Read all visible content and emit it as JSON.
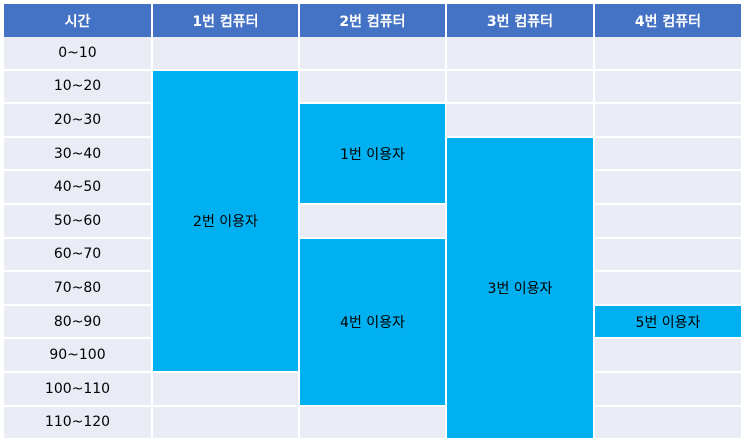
{
  "header": [
    "시간",
    "1번 컴퓨터",
    "2번 컴퓨터",
    "3번 컴퓨터",
    "4번 컴퓨터"
  ],
  "time_slots": [
    "0~10",
    "10~20",
    "20~30",
    "30~40",
    "40~50",
    "50~60",
    "60~70",
    "70~80",
    "80~90",
    "90~100",
    "100~110",
    "110~120"
  ],
  "usage": [
    {
      "computer": 1,
      "start": 10,
      "end": 100,
      "label": "2번 이용자"
    },
    {
      "computer": 2,
      "start": 20,
      "end": 50,
      "label": "1번 이용자"
    },
    {
      "computer": 2,
      "start": 60,
      "end": 110,
      "label": "4번 이용자"
    },
    {
      "computer": 3,
      "start": 30,
      "end": 120,
      "label": "3번 이용자"
    },
    {
      "computer": 4,
      "start": 80,
      "end": 90,
      "label": "5번 이용자"
    }
  ],
  "colors": {
    "header": "#4472c4",
    "cell": "#e9ecf4",
    "block": "#00b0f0",
    "gridline": "#ffffff"
  }
}
